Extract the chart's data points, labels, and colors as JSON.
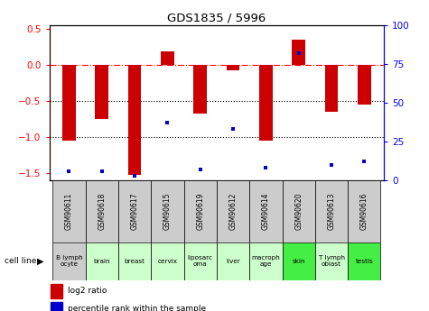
{
  "title": "GDS1835 / 5996",
  "samples": [
    "GSM90611",
    "GSM90618",
    "GSM90617",
    "GSM90615",
    "GSM90619",
    "GSM90612",
    "GSM90614",
    "GSM90620",
    "GSM90613",
    "GSM90616"
  ],
  "cell_lines": [
    "B lymph\nocyte",
    "brain",
    "breast",
    "cervix",
    "liposarc\noma",
    "liver",
    "macroph\nage",
    "skin",
    "T lymph\noblast",
    "testis"
  ],
  "cell_line_colors": [
    "#cccccc",
    "#ccffcc",
    "#ccffcc",
    "#ccffcc",
    "#ccffcc",
    "#ccffcc",
    "#ccffcc",
    "#44ee44",
    "#ccffcc",
    "#44ee44"
  ],
  "sample_box_color": "#cccccc",
  "log2_ratio": [
    -1.05,
    -0.75,
    -1.52,
    0.18,
    -0.68,
    -0.08,
    -1.05,
    0.35,
    -0.65,
    -0.55
  ],
  "percentile_rank": [
    6,
    6,
    3,
    37,
    7,
    33,
    8,
    82,
    10,
    12
  ],
  "ylim_left": [
    -1.6,
    0.55
  ],
  "ylim_right": [
    0,
    100
  ],
  "bar_color": "#cc0000",
  "dot_color": "#0000cc",
  "dotted_lines": [
    -0.5,
    -1.0
  ],
  "yticks_left": [
    -1.5,
    -1.0,
    -0.5,
    0.0,
    0.5
  ],
  "yticks_right": [
    0,
    25,
    50,
    75,
    100
  ],
  "bar_width": 0.4
}
